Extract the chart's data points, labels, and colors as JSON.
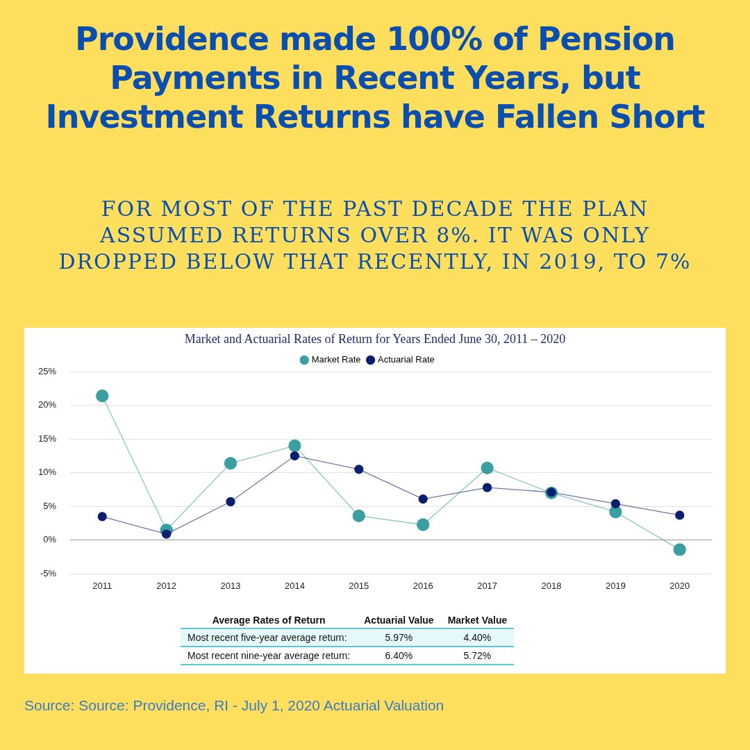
{
  "chart_data": {
    "type": "line",
    "title": "Providence made 100% of Pension Payments in Recent Years, but Investment Returns have Fallen Short",
    "subtitle": "FOR MOST OF THE PAST DECADE THE PLAN ASSUMED RETURNS OVER 8%. IT WAS ONLY DROPPED BELOW THAT RECENTLY, IN 2019, TO 7%",
    "categories": [
      "2011",
      "2012",
      "2013",
      "2014",
      "2015",
      "2016",
      "2017",
      "2018",
      "2019",
      "2020"
    ],
    "series": [
      {
        "name": "Market Rate",
        "color": "#3a9fa0",
        "values": [
          21.4,
          1.5,
          11.4,
          14.0,
          3.6,
          2.3,
          10.7,
          7.0,
          4.2,
          -1.4
        ]
      },
      {
        "name": "Actuarial Rate",
        "color": "#0c1f6e",
        "values": [
          3.5,
          0.9,
          5.7,
          12.5,
          10.5,
          6.1,
          7.8,
          7.1,
          5.4,
          3.7
        ]
      }
    ],
    "ylim": [
      -5,
      25
    ],
    "yticks": [
      {
        "value": -5,
        "label": "-5%"
      },
      {
        "value": 0,
        "label": "0%"
      },
      {
        "value": 5,
        "label": "5%"
      },
      {
        "value": 10,
        "label": "10%"
      },
      {
        "value": 15,
        "label": "15%"
      },
      {
        "value": 20,
        "label": "20%"
      },
      {
        "value": 25,
        "label": "25%"
      }
    ],
    "grid": "y",
    "legend": "top",
    "marker": "circle",
    "annotations": [
      "Market and Actuarial Rates of Return for Years Ended June 30, 2011 – 2020",
      "Average Rates of Return",
      "Actuarial Value",
      "Market Value",
      "Most recent five-year average return:",
      "5.97%",
      "4.40%",
      "Most recent nine-year average return:",
      "6.40%",
      "5.72%",
      "Source: Source: Providence, RI - July 1, 2020 Actuarial Valuation"
    ]
  }
}
